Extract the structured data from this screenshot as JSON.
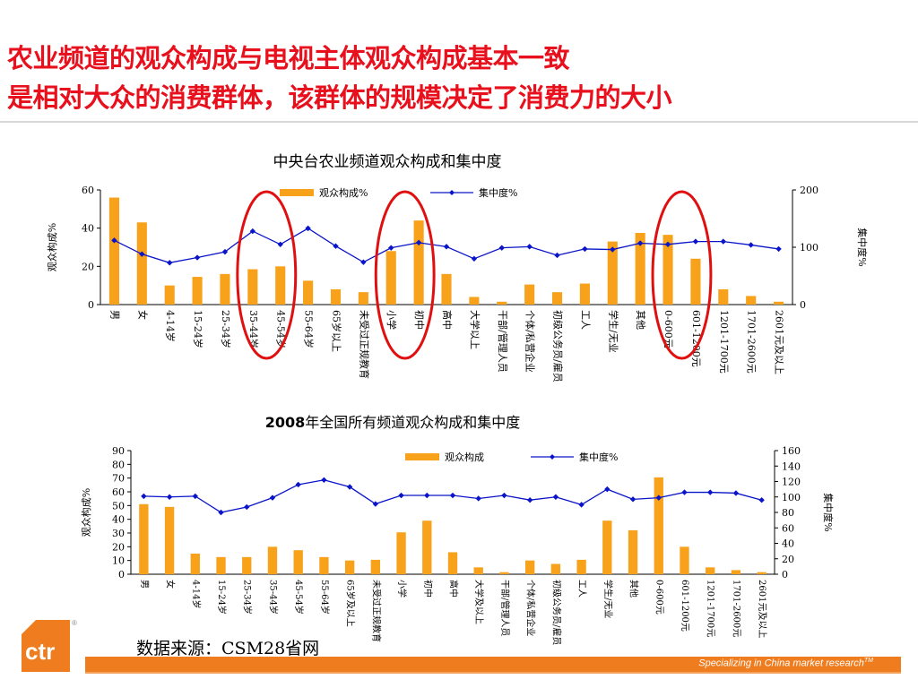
{
  "headline": {
    "line1": "农业频道的观众构成与电视主体观众构成基本一致",
    "line2": "是相对大众的消费群体，该群体的规模决定了消费力的大小"
  },
  "colors": {
    "bar": "#f7a21a",
    "line": "#0a14c8",
    "highlight_circle": "#e01010",
    "accent": "#ef7d1f",
    "headline": "#e8101c"
  },
  "chart_data": [
    {
      "type": "bar+line",
      "title": "中央台农业频道观众构成和集中度",
      "categories": [
        "男",
        "女",
        "4-14岁",
        "15-24岁",
        "25-34岁",
        "35-44岁",
        "45-54岁",
        "55-64岁",
        "65岁以上",
        "未受过正规教育",
        "小学",
        "初中",
        "高中",
        "大学以上",
        "干部/管理人员",
        "个体/私营企业",
        "初级公务员/雇员",
        "工人",
        "学生/无业",
        "其他",
        "0-600元",
        "601-1200元",
        "1201-1700元",
        "1701-2600元",
        "2601元及以上"
      ],
      "series": [
        {
          "name": "观众构成%",
          "type": "bar",
          "axis": "left",
          "values": [
            56,
            43,
            10,
            14.5,
            16,
            18.5,
            20,
            12.5,
            8,
            6.5,
            28,
            44,
            16,
            4,
            1.5,
            10.5,
            6.5,
            11,
            33,
            37.5,
            36.5,
            24,
            8,
            4.5,
            1.5
          ]
        },
        {
          "name": "集中度%",
          "type": "line",
          "axis": "right",
          "values": [
            112,
            88,
            73,
            82,
            92,
            128,
            105,
            133,
            102,
            74,
            99,
            108,
            101,
            80,
            99,
            101,
            86,
            97,
            96,
            107,
            105,
            110,
            110,
            104,
            97
          ]
        }
      ],
      "ylabel": "观众构成%",
      "y2label": "集中度%",
      "ylim": [
        0,
        60
      ],
      "yticks": [
        0,
        20,
        40,
        60
      ],
      "y2lim": [
        0,
        200
      ],
      "y2ticks": [
        0,
        100,
        200
      ],
      "highlight_groups": [
        [
          5,
          6
        ],
        [
          10,
          11
        ],
        [
          20,
          21
        ]
      ],
      "legend": "top"
    },
    {
      "type": "bar+line",
      "title_bold": "2008",
      "title": "年全国所有频道观众构成和集中度",
      "categories": [
        "男",
        "女",
        "4-14岁",
        "15-24岁",
        "25-34岁",
        "35-44岁",
        "45-54岁",
        "55-64岁",
        "65岁及以上",
        "未受过正规教育",
        "小学",
        "初中",
        "高中",
        "大学及以上",
        "干部/管理人员",
        "个体/私营企业",
        "初级公务员/雇员",
        "工人",
        "学生/无业",
        "其他",
        "0-600元",
        "601-1200元",
        "1201-1700元",
        "1701-2600元",
        "2601元及以上"
      ],
      "series": [
        {
          "name": "观众构成",
          "type": "bar",
          "axis": "left",
          "values": [
            51,
            49,
            15,
            12.5,
            12.5,
            20,
            17.5,
            12.5,
            10,
            10.5,
            30.5,
            39,
            16,
            5,
            1.5,
            10,
            7.5,
            10.5,
            39,
            32,
            70.5,
            20,
            5,
            3,
            1.5
          ]
        },
        {
          "name": "集中度%",
          "type": "line",
          "axis": "right",
          "values": [
            101,
            100,
            101,
            80,
            87,
            99,
            116,
            122,
            113,
            91,
            102,
            102,
            102,
            98,
            102,
            96,
            100,
            90,
            110,
            97,
            99,
            106,
            106,
            105,
            96
          ]
        }
      ],
      "ylabel": "观众构成%",
      "y2label": "集中度%",
      "ylim": [
        0,
        90
      ],
      "yticks": [
        0,
        10,
        20,
        30,
        40,
        50,
        60,
        70,
        80,
        90
      ],
      "y2lim": [
        0,
        160
      ],
      "y2ticks": [
        0,
        20,
        40,
        60,
        80,
        100,
        120,
        140,
        160
      ],
      "legend": "top"
    }
  ],
  "source": "数据来源：CSM28省网",
  "footer": {
    "tagline": "Specializing in China market research",
    "tm": "TM"
  },
  "logo": {
    "text": "ctr",
    "reg": "®"
  }
}
